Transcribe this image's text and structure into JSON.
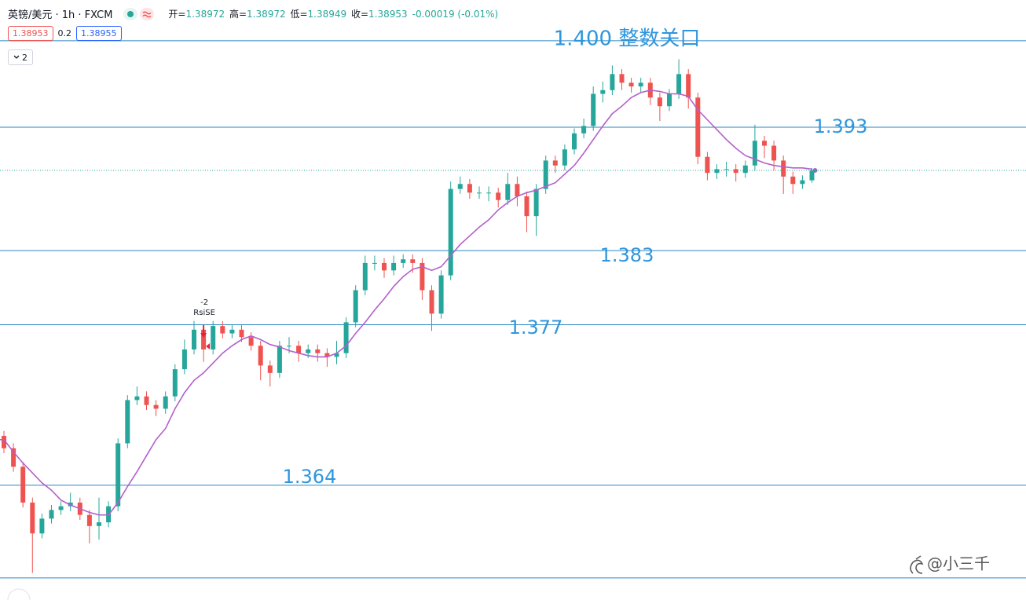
{
  "header": {
    "symbol": "英镑/美元 · 1h · FXCM",
    "ohlc": [
      {
        "label": "开=",
        "value": "1.38972"
      },
      {
        "label": "高=",
        "value": "1.38972"
      },
      {
        "label": "低=",
        "value": "1.38949"
      },
      {
        "label": "收=",
        "value": "1.38953"
      }
    ],
    "change": "-0.00019 (-0.01%)",
    "bid": "1.38953",
    "spread": "0.2",
    "ask": "1.38955",
    "indicator_count": "2"
  },
  "chart_data": {
    "type": "candlestick",
    "ylim": [
      1.35471,
      1.4033
    ],
    "up_color": "#26a69a",
    "down_color": "#ef5350",
    "open": [
      1.368,
      1.367,
      1.3655,
      1.3626,
      1.3601,
      1.3613,
      1.362,
      1.3623,
      1.3626,
      1.3616,
      1.3607,
      1.361,
      1.3623,
      1.3674,
      1.3709,
      1.3712,
      1.3705,
      1.3702,
      1.3712,
      1.3734,
      1.375,
      1.3766,
      1.375,
      1.3769,
      1.3763,
      1.3766,
      1.376,
      1.3753,
      1.3737,
      1.3731,
      1.3753,
      1.3753,
      1.3747,
      1.375,
      1.3747,
      1.3744,
      1.3747,
      1.3772,
      1.3798,
      1.382,
      1.382,
      1.3814,
      1.382,
      1.3823,
      1.382,
      1.3798,
      1.3779,
      1.381,
      1.388,
      1.3884,
      1.3877,
      1.3877,
      1.3877,
      1.3871,
      1.3884,
      1.3874,
      1.3858,
      1.388,
      1.3903,
      1.3899,
      1.3912,
      1.3925,
      1.3931,
      1.3957,
      1.396,
      1.3973,
      1.3966,
      1.3963,
      1.3966,
      1.3954,
      1.3947,
      1.3957,
      1.3973,
      1.3954,
      1.3906,
      1.3893,
      1.3896,
      1.3896,
      1.3893,
      1.3899,
      1.3919,
      1.3915,
      1.3903,
      1.389,
      1.3884,
      1.3887
    ],
    "high": [
      1.3684,
      1.3674,
      1.3659,
      1.363,
      1.3617,
      1.3624,
      1.3627,
      1.3634,
      1.363,
      1.362,
      1.363,
      1.3627,
      1.3678,
      1.3713,
      1.372,
      1.3716,
      1.3709,
      1.3716,
      1.3738,
      1.3758,
      1.3773,
      1.377,
      1.3773,
      1.3773,
      1.377,
      1.377,
      1.3764,
      1.3757,
      1.3741,
      1.3757,
      1.376,
      1.3757,
      1.3754,
      1.3754,
      1.3751,
      1.3757,
      1.3776,
      1.3802,
      1.3826,
      1.3826,
      1.3824,
      1.3826,
      1.3827,
      1.3827,
      1.3824,
      1.3802,
      1.3814,
      1.3886,
      1.389,
      1.3888,
      1.3882,
      1.3882,
      1.3881,
      1.3893,
      1.389,
      1.3878,
      1.3884,
      1.3907,
      1.3907,
      1.3916,
      1.3929,
      1.3937,
      1.3963,
      1.3967,
      1.398,
      1.3977,
      1.397,
      1.397,
      1.397,
      1.3958,
      1.3961,
      1.3985,
      1.3977,
      1.3958,
      1.391,
      1.39,
      1.3902,
      1.39,
      1.3903,
      1.3932,
      1.3923,
      1.3919,
      1.3907,
      1.3894,
      1.3891,
      1.3897
    ],
    "low": [
      1.3666,
      1.3651,
      1.3622,
      1.3569,
      1.3597,
      1.3609,
      1.3616,
      1.3619,
      1.3612,
      1.3593,
      1.3596,
      1.3606,
      1.3619,
      1.367,
      1.3705,
      1.3701,
      1.3696,
      1.3698,
      1.3708,
      1.373,
      1.3746,
      1.374,
      1.3746,
      1.3759,
      1.3759,
      1.3756,
      1.3749,
      1.3725,
      1.372,
      1.3727,
      1.3747,
      1.374,
      1.3743,
      1.374,
      1.3736,
      1.3738,
      1.3743,
      1.3768,
      1.3794,
      1.3814,
      1.3808,
      1.381,
      1.3816,
      1.3812,
      1.379,
      1.3765,
      1.3775,
      1.3806,
      1.3876,
      1.3872,
      1.3872,
      1.387,
      1.3865,
      1.3867,
      1.3866,
      1.3845,
      1.3842,
      1.3876,
      1.3893,
      1.3895,
      1.3908,
      1.3921,
      1.3927,
      1.395,
      1.3956,
      1.396,
      1.3958,
      1.3958,
      1.3948,
      1.3935,
      1.3943,
      1.3953,
      1.3945,
      1.39,
      1.3887,
      1.3888,
      1.389,
      1.3886,
      1.3889,
      1.3895,
      1.3905,
      1.3895,
      1.3876,
      1.3876,
      1.388,
      1.3885
    ],
    "close": [
      1.367,
      1.3655,
      1.3626,
      1.3601,
      1.3613,
      1.362,
      1.3623,
      1.3626,
      1.3616,
      1.3607,
      1.361,
      1.3623,
      1.3674,
      1.3709,
      1.3712,
      1.3705,
      1.3702,
      1.3712,
      1.3734,
      1.375,
      1.3766,
      1.375,
      1.3769,
      1.3763,
      1.3766,
      1.376,
      1.3753,
      1.3737,
      1.3731,
      1.3753,
      1.3753,
      1.3747,
      1.375,
      1.3747,
      1.3744,
      1.3747,
      1.3772,
      1.3798,
      1.382,
      1.382,
      1.3814,
      1.382,
      1.3823,
      1.382,
      1.3798,
      1.3779,
      1.381,
      1.388,
      1.3884,
      1.3877,
      1.3877,
      1.3877,
      1.3871,
      1.3884,
      1.3874,
      1.3858,
      1.388,
      1.3903,
      1.3899,
      1.3912,
      1.3925,
      1.3931,
      1.3957,
      1.396,
      1.3973,
      1.3966,
      1.3963,
      1.3966,
      1.3954,
      1.3947,
      1.3957,
      1.3973,
      1.3954,
      1.3906,
      1.3893,
      1.3896,
      1.3896,
      1.3893,
      1.3899,
      1.3919,
      1.3915,
      1.3903,
      1.389,
      1.3884,
      1.3887,
      1.3895
    ],
    "ma": {
      "color": "#b45fcc",
      "values": [
        1.3677,
        1.3667,
        1.3658,
        1.365,
        1.3642,
        1.3636,
        1.3628,
        1.3624,
        1.3621,
        1.3618,
        1.3616,
        1.3616,
        1.3626,
        1.3639,
        1.3651,
        1.3664,
        1.3677,
        1.3686,
        1.3702,
        1.3715,
        1.3725,
        1.3731,
        1.3739,
        1.3747,
        1.3753,
        1.3758,
        1.3761,
        1.3758,
        1.3754,
        1.3752,
        1.3749,
        1.3747,
        1.3745,
        1.3744,
        1.3744,
        1.3747,
        1.3753,
        1.3763,
        1.3772,
        1.3782,
        1.3791,
        1.3801,
        1.3809,
        1.3815,
        1.3817,
        1.3814,
        1.3817,
        1.3826,
        1.3835,
        1.3842,
        1.3849,
        1.3855,
        1.3863,
        1.3869,
        1.3874,
        1.3877,
        1.3879,
        1.3882,
        1.3885,
        1.3892,
        1.3899,
        1.3909,
        1.392,
        1.3931,
        1.3941,
        1.3947,
        1.3954,
        1.3958,
        1.396,
        1.3959,
        1.3957,
        1.3957,
        1.3955,
        1.3944,
        1.3936,
        1.3928,
        1.392,
        1.3913,
        1.3907,
        1.3904,
        1.3901,
        1.3899,
        1.3898,
        1.3897,
        1.3897,
        1.3896
      ]
    },
    "levels": [
      1.4,
      1.393,
      1.383,
      1.377,
      1.364,
      1.3565
    ],
    "level_labels": [
      "1.400 整数关口",
      "1.393",
      "1.383",
      "1.377",
      "1.364",
      null
    ],
    "level_color": "#2b86c5",
    "signal": {
      "value": "-2",
      "label": "RsiSE"
    },
    "watermark": "@小三千"
  }
}
